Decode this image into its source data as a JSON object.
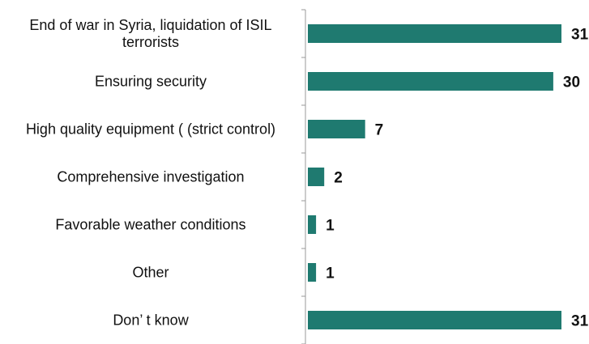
{
  "chart_data": {
    "type": "bar",
    "orientation": "horizontal",
    "categories": [
      [
        "End of war in Syria, liquidation of ISIL",
        "terrorists"
      ],
      [
        "Ensuring security"
      ],
      [
        "High quality equipment ( (strict control)"
      ],
      [
        "Comprehensive investigation"
      ],
      [
        "Favorable weather conditions"
      ],
      [
        "Other"
      ],
      [
        "Don’ t know"
      ]
    ],
    "values": [
      31,
      30,
      7,
      2,
      1,
      1,
      31
    ],
    "xlim": [
      0,
      34
    ],
    "title": "",
    "xlabel": "",
    "ylabel": "",
    "grid": false,
    "legend": "none",
    "colors": {
      "bar": "#1f7a70",
      "axis": "#9a9a9a",
      "text": "#111111"
    }
  }
}
